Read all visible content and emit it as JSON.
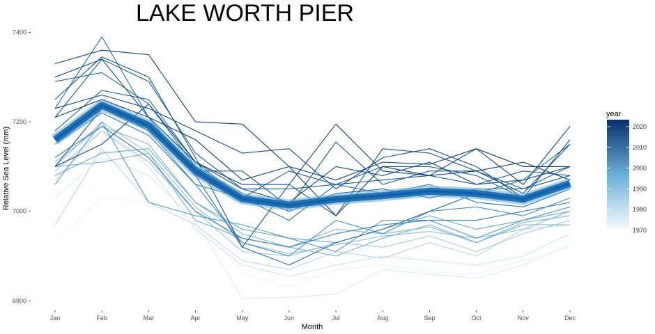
{
  "chart_data": {
    "type": "line",
    "title": "LAKE WORTH PIER",
    "xlabel": "Month",
    "ylabel": "Relative Sea Level (mm)",
    "categories": [
      "Jan",
      "Feb",
      "Mar",
      "Apr",
      "May",
      "Jun",
      "Jul",
      "Aug",
      "Sep",
      "Oct",
      "Nov",
      "Dec"
    ],
    "ylim": [
      6785,
      7410
    ],
    "yticks": [
      6800,
      7000,
      7200,
      7400
    ],
    "legend": {
      "title": "year",
      "position": "right",
      "range": [
        1970,
        2022
      ],
      "ticks": [
        1970,
        1980,
        1990,
        2000,
        2010,
        2020
      ],
      "color_low": "#f7fbff",
      "color_high": "#08306b"
    },
    "mean_line": {
      "color": "#2171b5",
      "values": [
        7160,
        7237,
        7192,
        7090,
        7028,
        7014,
        7027,
        7035,
        7045,
        7040,
        7027,
        7062
      ]
    },
    "series": [
      {
        "year": 1973,
        "values": [
          6930,
          7030,
          7020,
          6990,
          6860,
          6830,
          6870,
          6880,
          6865,
          6860,
          6890,
          6920
        ]
      },
      {
        "year": 1977,
        "values": [
          7030,
          7120,
          7080,
          6980,
          6805,
          6808,
          6815,
          6870,
          6860,
          6850,
          6880,
          6925
        ]
      },
      {
        "year": 1981,
        "values": [
          7070,
          7180,
          7100,
          6960,
          6880,
          6855,
          6880,
          6900,
          6890,
          6880,
          6900,
          6950
        ]
      },
      {
        "year": 1985,
        "values": [
          6970,
          7140,
          7020,
          6970,
          6890,
          6870,
          6910,
          6895,
          6930,
          6900,
          6960,
          6970
        ]
      },
      {
        "year": 1988,
        "values": [
          7090,
          7180,
          7110,
          7000,
          6910,
          6900,
          6930,
          6920,
          6945,
          6910,
          6950,
          6980
        ]
      },
      {
        "year": 1991,
        "values": [
          7100,
          7200,
          7130,
          7010,
          6930,
          6905,
          6925,
          6945,
          6955,
          6940,
          6960,
          7000
        ]
      },
      {
        "year": 1993,
        "values": [
          7110,
          7190,
          7150,
          7020,
          6950,
          6920,
          6960,
          6950,
          6965,
          6930,
          6975,
          6990
        ]
      },
      {
        "year": 1995,
        "values": [
          7100,
          7110,
          7130,
          6980,
          6940,
          6920,
          6900,
          6940,
          6970,
          6930,
          6970,
          6970
        ]
      },
      {
        "year": 1997,
        "values": [
          7080,
          7130,
          7140,
          7020,
          6960,
          6940,
          6930,
          6960,
          6990,
          6960,
          6980,
          7000
        ]
      },
      {
        "year": 2000,
        "values": [
          7060,
          7200,
          7020,
          6990,
          6970,
          6940,
          6910,
          6980,
          6980,
          6940,
          6980,
          7010
        ]
      },
      {
        "year": 2003,
        "values": [
          7160,
          7240,
          7180,
          7060,
          6930,
          6900,
          6980,
          6950,
          7000,
          7010,
          6990,
          7030
        ]
      },
      {
        "year": 2006,
        "values": [
          7120,
          7190,
          7120,
          7000,
          6940,
          6920,
          6950,
          6970,
          6980,
          6980,
          7000,
          7020
        ]
      },
      {
        "year": 2008,
        "values": [
          7150,
          7220,
          7170,
          7060,
          7030,
          6980,
          7060,
          7040,
          7060,
          7020,
          7010,
          7050
        ]
      },
      {
        "year": 2010,
        "values": [
          7230,
          7390,
          7210,
          7080,
          6920,
          6880,
          6930,
          6960,
          7000,
          7040,
          7070,
          7150
        ]
      },
      {
        "year": 2011,
        "values": [
          7290,
          7310,
          7240,
          7100,
          7040,
          7000,
          7040,
          7050,
          7030,
          7050,
          7050,
          7100
        ]
      },
      {
        "year": 2012,
        "values": [
          7180,
          7270,
          7250,
          7110,
          7030,
          7090,
          7060,
          7100,
          7100,
          7080,
          7030,
          7060
        ]
      },
      {
        "year": 2013,
        "values": [
          7210,
          7340,
          7290,
          7130,
          7050,
          7050,
          7060,
          7070,
          7080,
          7060,
          7090,
          7080
        ]
      },
      {
        "year": 2014,
        "values": [
          7100,
          7230,
          7180,
          7090,
          7090,
          7010,
          7155,
          7060,
          7090,
          7090,
          7050,
          7080
        ]
      },
      {
        "year": 2015,
        "values": [
          7250,
          7345,
          7300,
          7120,
          6920,
          7060,
          6990,
          7140,
          7130,
          7090,
          7040,
          7150
        ]
      },
      {
        "year": 2016,
        "values": [
          7300,
          7340,
          7210,
          7110,
          7050,
          7020,
          7100,
          7080,
          7110,
          7060,
          7070,
          7100
        ]
      },
      {
        "year": 2017,
        "values": [
          7230,
          7260,
          7230,
          7180,
          7130,
          7140,
          7050,
          7120,
          7140,
          7100,
          7030,
          7160
        ]
      },
      {
        "year": 2018,
        "values": [
          7100,
          7150,
          7240,
          7110,
          7060,
          7060,
          7195,
          7090,
          7080,
          7140,
          7060,
          7190
        ]
      },
      {
        "year": 2019,
        "values": [
          7330,
          7360,
          7350,
          7200,
          7195,
          7100,
          7070,
          7110,
          7105,
          7140,
          7100,
          7100
        ]
      },
      {
        "year": 2020,
        "values": [
          7210,
          7250,
          7210,
          7160,
          7070,
          7100,
          6990,
          7100,
          7080,
          7090,
          7110,
          7070
        ]
      }
    ]
  }
}
